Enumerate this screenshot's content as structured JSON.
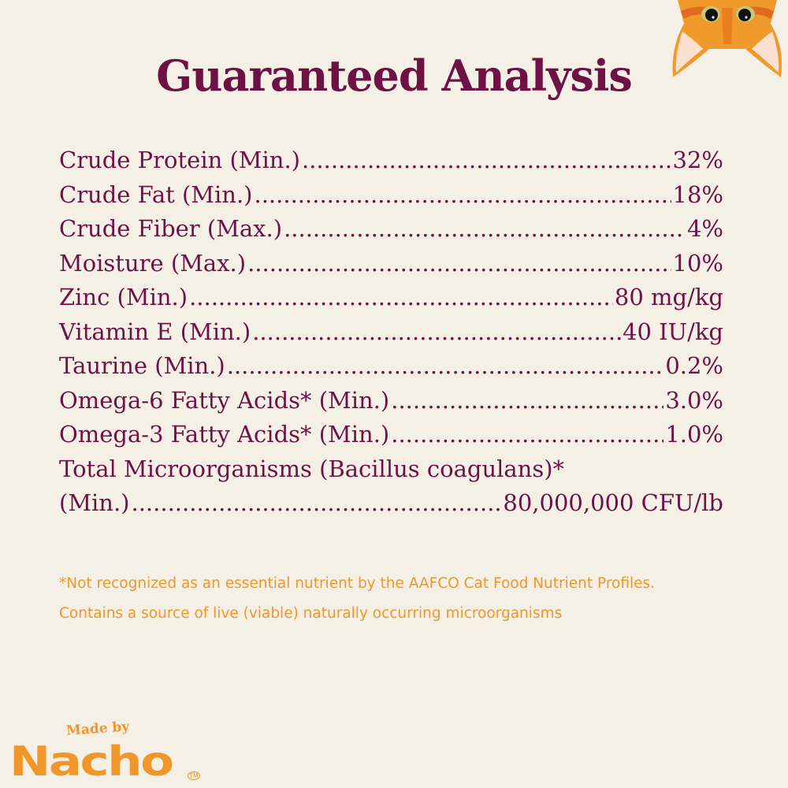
{
  "title": "Guaranteed Analysis",
  "analysis": [
    {
      "label": "Crude Protein (Min.)",
      "value": "32%"
    },
    {
      "label": "Crude Fat (Min.)",
      "value": "18%"
    },
    {
      "label": "Crude Fiber (Max.)",
      "value": "4%"
    },
    {
      "label": "Moisture (Max.)",
      "value": "10%"
    },
    {
      "label": "Zinc (Min.)",
      "value": "80 mg/kg"
    },
    {
      "label": "Vitamin E (Min.)",
      "value": "40 IU/kg"
    },
    {
      "label": "Taurine (Min.)",
      "value": "0.2%"
    },
    {
      "label": "Omega-6 Fatty Acids* (Min.)",
      "value": "3.0%"
    },
    {
      "label": "Omega-3 Fatty Acids* (Min.)",
      "value": "1.0%"
    }
  ],
  "microorganisms": {
    "label_line1": "Total Microorganisms (Bacillus coagulans)*",
    "label_line2": "(Min.)",
    "value": "80,000,000 CFU/lb"
  },
  "notes": [
    "*Not recognized as an essential nutrient by the AAFCO Cat Food Nutrient Profiles.",
    "Contains a source of live (viable) naturally occurring microorganisms"
  ],
  "logo": {
    "tagline": "Made by",
    "brand": "Nacho",
    "mark": "TM"
  },
  "colors": {
    "background": "#f5f0e6",
    "primary": "#6e1246",
    "accent": "#f0962a"
  },
  "icons": {
    "mascot": "cat-face-icon"
  }
}
